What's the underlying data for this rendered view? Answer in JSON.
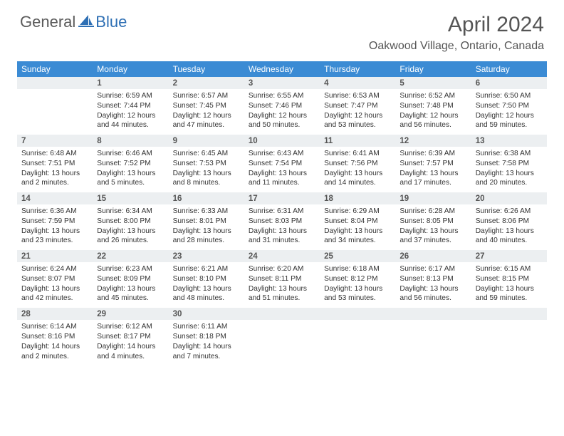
{
  "logo": {
    "general": "General",
    "blue": "Blue"
  },
  "title": "April 2024",
  "location": "Oakwood Village, Ontario, Canada",
  "colors": {
    "header_bg": "#3b8bd4",
    "header_fg": "#ffffff",
    "daynum_bg": "#eceff1",
    "text": "#333333",
    "title": "#555555",
    "rule": "#c9d6e2"
  },
  "days_of_week": [
    "Sunday",
    "Monday",
    "Tuesday",
    "Wednesday",
    "Thursday",
    "Friday",
    "Saturday"
  ],
  "start_offset": 1,
  "days": [
    {
      "n": 1,
      "sr": "6:59 AM",
      "ss": "7:44 PM",
      "dl": "12 hours and 44 minutes."
    },
    {
      "n": 2,
      "sr": "6:57 AM",
      "ss": "7:45 PM",
      "dl": "12 hours and 47 minutes."
    },
    {
      "n": 3,
      "sr": "6:55 AM",
      "ss": "7:46 PM",
      "dl": "12 hours and 50 minutes."
    },
    {
      "n": 4,
      "sr": "6:53 AM",
      "ss": "7:47 PM",
      "dl": "12 hours and 53 minutes."
    },
    {
      "n": 5,
      "sr": "6:52 AM",
      "ss": "7:48 PM",
      "dl": "12 hours and 56 minutes."
    },
    {
      "n": 6,
      "sr": "6:50 AM",
      "ss": "7:50 PM",
      "dl": "12 hours and 59 minutes."
    },
    {
      "n": 7,
      "sr": "6:48 AM",
      "ss": "7:51 PM",
      "dl": "13 hours and 2 minutes."
    },
    {
      "n": 8,
      "sr": "6:46 AM",
      "ss": "7:52 PM",
      "dl": "13 hours and 5 minutes."
    },
    {
      "n": 9,
      "sr": "6:45 AM",
      "ss": "7:53 PM",
      "dl": "13 hours and 8 minutes."
    },
    {
      "n": 10,
      "sr": "6:43 AM",
      "ss": "7:54 PM",
      "dl": "13 hours and 11 minutes."
    },
    {
      "n": 11,
      "sr": "6:41 AM",
      "ss": "7:56 PM",
      "dl": "13 hours and 14 minutes."
    },
    {
      "n": 12,
      "sr": "6:39 AM",
      "ss": "7:57 PM",
      "dl": "13 hours and 17 minutes."
    },
    {
      "n": 13,
      "sr": "6:38 AM",
      "ss": "7:58 PM",
      "dl": "13 hours and 20 minutes."
    },
    {
      "n": 14,
      "sr": "6:36 AM",
      "ss": "7:59 PM",
      "dl": "13 hours and 23 minutes."
    },
    {
      "n": 15,
      "sr": "6:34 AM",
      "ss": "8:00 PM",
      "dl": "13 hours and 26 minutes."
    },
    {
      "n": 16,
      "sr": "6:33 AM",
      "ss": "8:01 PM",
      "dl": "13 hours and 28 minutes."
    },
    {
      "n": 17,
      "sr": "6:31 AM",
      "ss": "8:03 PM",
      "dl": "13 hours and 31 minutes."
    },
    {
      "n": 18,
      "sr": "6:29 AM",
      "ss": "8:04 PM",
      "dl": "13 hours and 34 minutes."
    },
    {
      "n": 19,
      "sr": "6:28 AM",
      "ss": "8:05 PM",
      "dl": "13 hours and 37 minutes."
    },
    {
      "n": 20,
      "sr": "6:26 AM",
      "ss": "8:06 PM",
      "dl": "13 hours and 40 minutes."
    },
    {
      "n": 21,
      "sr": "6:24 AM",
      "ss": "8:07 PM",
      "dl": "13 hours and 42 minutes."
    },
    {
      "n": 22,
      "sr": "6:23 AM",
      "ss": "8:09 PM",
      "dl": "13 hours and 45 minutes."
    },
    {
      "n": 23,
      "sr": "6:21 AM",
      "ss": "8:10 PM",
      "dl": "13 hours and 48 minutes."
    },
    {
      "n": 24,
      "sr": "6:20 AM",
      "ss": "8:11 PM",
      "dl": "13 hours and 51 minutes."
    },
    {
      "n": 25,
      "sr": "6:18 AM",
      "ss": "8:12 PM",
      "dl": "13 hours and 53 minutes."
    },
    {
      "n": 26,
      "sr": "6:17 AM",
      "ss": "8:13 PM",
      "dl": "13 hours and 56 minutes."
    },
    {
      "n": 27,
      "sr": "6:15 AM",
      "ss": "8:15 PM",
      "dl": "13 hours and 59 minutes."
    },
    {
      "n": 28,
      "sr": "6:14 AM",
      "ss": "8:16 PM",
      "dl": "14 hours and 2 minutes."
    },
    {
      "n": 29,
      "sr": "6:12 AM",
      "ss": "8:17 PM",
      "dl": "14 hours and 4 minutes."
    },
    {
      "n": 30,
      "sr": "6:11 AM",
      "ss": "8:18 PM",
      "dl": "14 hours and 7 minutes."
    }
  ],
  "labels": {
    "sunrise": "Sunrise:",
    "sunset": "Sunset:",
    "daylight": "Daylight:"
  }
}
